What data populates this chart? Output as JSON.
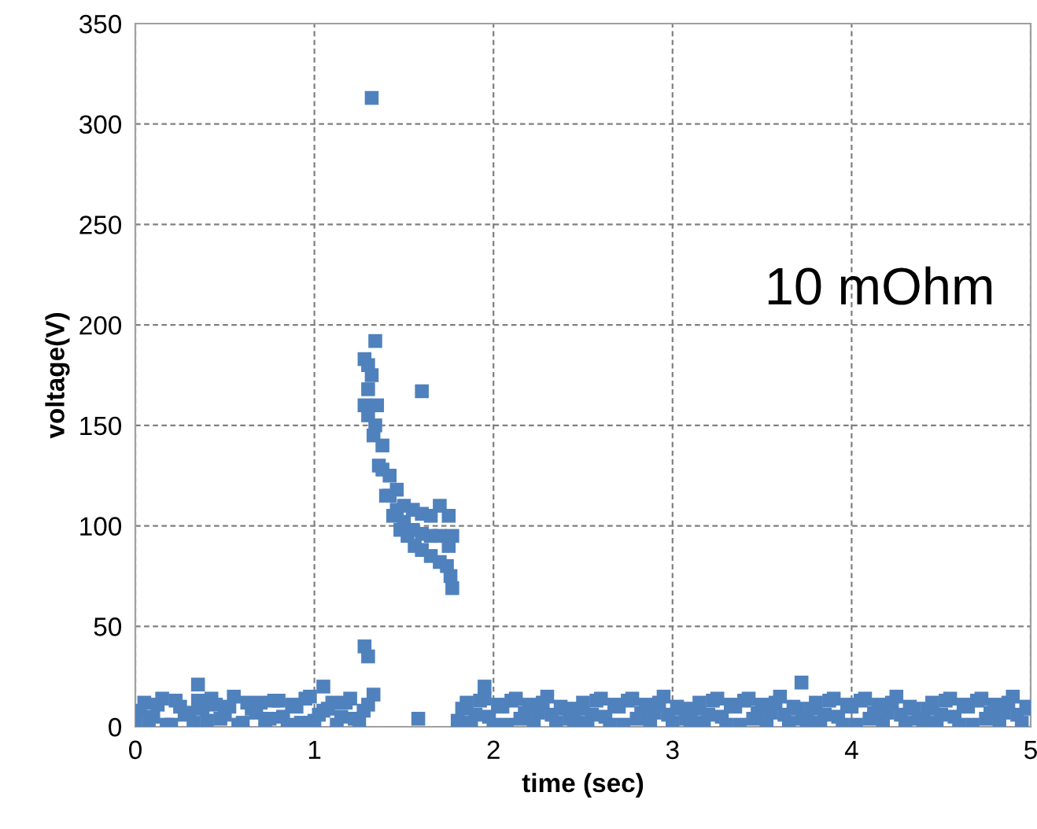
{
  "chart_data": {
    "type": "scatter",
    "xlabel": "time (sec)",
    "ylabel": "voltage(V)",
    "annotations": [
      "10 mOhm"
    ],
    "xlim": [
      0,
      5
    ],
    "xticks": [
      0,
      1,
      2,
      3,
      4,
      5
    ],
    "ylim": [
      0,
      350
    ],
    "yticks": [
      0,
      50,
      100,
      150,
      200,
      250,
      300,
      350
    ],
    "grid": true,
    "marker": "square",
    "series": [
      {
        "color": "#4f81bd",
        "x": [
          0.0,
          0.05,
          0.1,
          0.15,
          0.2,
          0.25,
          0.3,
          0.35,
          0.4,
          0.45,
          0.5,
          0.55,
          0.6,
          0.65,
          0.7,
          0.75,
          0.8,
          0.85,
          0.9,
          0.95,
          1.0,
          1.05,
          1.1,
          1.15,
          1.2,
          1.25,
          1.3,
          0.025,
          0.075,
          0.125,
          0.175,
          0.225,
          0.275,
          0.325,
          0.375,
          0.425,
          0.475,
          0.525,
          0.575,
          0.625,
          0.675,
          0.725,
          0.775,
          0.825,
          0.875,
          0.925,
          0.975,
          1.025,
          1.075,
          1.125,
          1.175,
          1.225,
          1.275,
          1.8,
          1.85,
          1.9,
          1.95,
          2.0,
          2.05,
          2.1,
          2.15,
          2.2,
          2.25,
          2.3,
          2.35,
          2.4,
          2.45,
          2.5,
          2.55,
          2.6,
          2.65,
          2.7,
          2.75,
          2.8,
          2.85,
          2.9,
          2.95,
          3.0,
          3.05,
          3.1,
          3.15,
          3.2,
          3.25,
          3.3,
          3.35,
          3.4,
          3.45,
          3.5,
          3.55,
          3.6,
          3.65,
          3.7,
          3.75,
          3.8,
          3.85,
          3.9,
          3.95,
          4.0,
          4.05,
          4.1,
          4.15,
          4.2,
          4.25,
          4.3,
          4.35,
          4.4,
          4.45,
          4.5,
          4.55,
          4.6,
          4.65,
          4.7,
          4.75,
          4.8,
          4.85,
          4.9,
          4.95,
          5.0,
          1.825,
          1.875,
          1.925,
          1.975,
          2.025,
          2.075,
          2.125,
          2.175,
          2.225,
          2.275,
          2.325,
          2.375,
          2.425,
          2.475,
          2.525,
          2.575,
          2.625,
          2.675,
          2.725,
          2.775,
          2.825,
          2.875,
          2.925,
          2.975,
          3.025,
          3.075,
          3.125,
          3.175,
          3.225,
          3.275,
          3.325,
          3.375,
          3.425,
          3.475,
          3.525,
          3.575,
          3.625,
          3.675,
          3.725,
          3.775,
          3.825,
          3.875,
          3.925,
          3.975,
          4.025,
          4.075,
          4.125,
          4.175,
          4.225,
          4.275,
          4.325,
          4.375,
          4.425,
          4.475,
          4.525,
          4.575,
          4.625,
          4.675,
          4.725,
          4.775,
          4.825,
          4.875,
          4.925,
          4.975,
          0.35,
          1.05,
          1.28,
          1.3,
          1.32,
          1.33,
          1.58,
          1.6,
          1.34,
          1.95,
          3.72,
          1.28,
          1.3,
          1.32,
          1.35,
          1.38,
          1.42,
          1.46,
          1.5,
          1.55,
          1.6,
          1.65,
          1.7,
          1.75,
          1.77,
          1.28,
          1.3,
          1.33,
          1.36,
          1.4,
          1.44,
          1.48,
          1.52,
          1.56,
          1.6,
          1.65,
          1.7,
          1.74,
          1.76,
          1.77,
          1.3,
          1.34,
          1.38,
          1.42,
          1.46,
          1.5,
          1.55,
          1.6,
          1.65,
          1.7,
          1.75
        ],
        "values": [
          2,
          12,
          5,
          14,
          1,
          10,
          7,
          13,
          3,
          11,
          6,
          15,
          2,
          9,
          12,
          4,
          13,
          1,
          10,
          14,
          3,
          8,
          12,
          5,
          14,
          2,
          11,
          8,
          3,
          11,
          1,
          13,
          6,
          2,
          9,
          14,
          4,
          10,
          1,
          12,
          7,
          3,
          13,
          5,
          11,
          2,
          15,
          6,
          9,
          1,
          12,
          4,
          8,
          3,
          12,
          6,
          14,
          1,
          10,
          13,
          4,
          11,
          7,
          15,
          2,
          9,
          3,
          12,
          6,
          14,
          1,
          10,
          13,
          4,
          11,
          7,
          15,
          2,
          9,
          3,
          12,
          6,
          14,
          1,
          10,
          13,
          4,
          11,
          7,
          15,
          2,
          9,
          3,
          12,
          6,
          14,
          1,
          10,
          13,
          4,
          11,
          7,
          15,
          2,
          9,
          3,
          12,
          6,
          14,
          1,
          10,
          13,
          4,
          11,
          7,
          15,
          2,
          9,
          9,
          2,
          13,
          5,
          11,
          1,
          14,
          7,
          3,
          12,
          6,
          10,
          4,
          9,
          2,
          13,
          5,
          11,
          1,
          14,
          7,
          3,
          12,
          6,
          10,
          4,
          9,
          2,
          13,
          5,
          11,
          1,
          14,
          7,
          3,
          12,
          6,
          10,
          4,
          9,
          2,
          13,
          5,
          11,
          1,
          14,
          7,
          3,
          12,
          6,
          10,
          4,
          9,
          2,
          13,
          5,
          11,
          1,
          14,
          7,
          3,
          12,
          6,
          10,
          21,
          20,
          40,
          35,
          313,
          16,
          4,
          167,
          192,
          20,
          22,
          183,
          180,
          175,
          160,
          140,
          125,
          118,
          110,
          108,
          106,
          105,
          110,
          105,
          95,
          160,
          155,
          145,
          130,
          115,
          105,
          98,
          95,
          90,
          88,
          85,
          82,
          80,
          75,
          69,
          168,
          150,
          128,
          115,
          108,
          102,
          98,
          96,
          95,
          95,
          90
        ]
      }
    ]
  }
}
